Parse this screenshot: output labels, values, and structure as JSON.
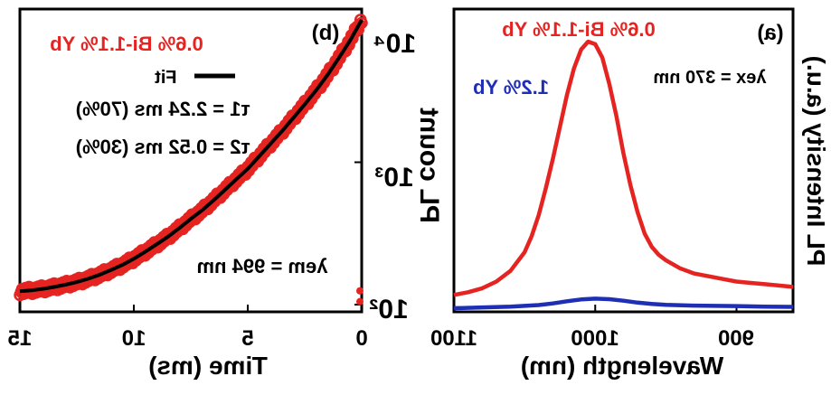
{
  "colors": {
    "red": "#e52421",
    "blue": "#1f2fb5",
    "black": "#000000"
  },
  "chart_data": [
    {
      "panel_label": "(b)",
      "type": "scatter",
      "xlabel": "Time (ms)",
      "ylabel": "",
      "xlim": [
        15,
        0
      ],
      "ylim_log10": [
        2,
        4
      ],
      "yscale": "log",
      "xticks": [
        "15",
        "10",
        "5",
        "0"
      ],
      "yticks": [
        "10²",
        "10³",
        "10⁴"
      ],
      "legend": {
        "sample": "0.6% Bi-1.1% Yb",
        "fit_label": "Fit"
      },
      "annotations": {
        "tau1": "τ1 = 2.24 ms (70%)",
        "tau2": "τ2 = 0.52 ms (30%)",
        "lambda_em": "λem = 994 nm"
      },
      "series": [
        {
          "name": "0.6% Bi-1.1% Yb",
          "style": "markers",
          "x": [
            0,
            0.5,
            1,
            1.5,
            2,
            2.5,
            3,
            3.5,
            4,
            4.5,
            5,
            5.5,
            6,
            6.5,
            7,
            7.5,
            8,
            8.5,
            9,
            9.5,
            10,
            10.5,
            11,
            11.5,
            12,
            12.5,
            13,
            13.5,
            14,
            14.5,
            15
          ],
          "y": [
            10000,
            7200,
            5400,
            4100,
            3200,
            2550,
            2050,
            1650,
            1350,
            1100,
            900,
            760,
            640,
            540,
            460,
            400,
            345,
            300,
            265,
            235,
            210,
            190,
            175,
            162,
            152,
            144,
            138,
            133,
            129,
            126,
            124
          ]
        },
        {
          "name": "Fit",
          "style": "line",
          "x": [
            0,
            0.5,
            1,
            1.5,
            2,
            2.5,
            3,
            3.5,
            4,
            4.5,
            5,
            5.5,
            6,
            6.5,
            7,
            7.5,
            8,
            8.5,
            9,
            9.5,
            10,
            10.5,
            11,
            11.5,
            12,
            12.5,
            13,
            13.5,
            14,
            14.5,
            15
          ],
          "y": [
            10000,
            7200,
            5400,
            4100,
            3200,
            2550,
            2050,
            1650,
            1350,
            1100,
            900,
            760,
            640,
            540,
            460,
            400,
            345,
            300,
            265,
            235,
            210,
            190,
            175,
            162,
            152,
            144,
            138,
            133,
            129,
            126,
            124
          ]
        }
      ]
    },
    {
      "panel_label": "(a)",
      "type": "line",
      "xlabel": "Wavelength (nm)",
      "ylabel": "PL Intensity (a.u.)",
      "ylabel_inner": "PL count",
      "xlim": [
        1100,
        860
      ],
      "ylim": [
        0,
        1.1
      ],
      "xticks": [
        "1100",
        "1000",
        "900"
      ],
      "annotations": {
        "lambda_ex": "λex = 370 nm"
      },
      "series": [
        {
          "name": "0.6% Bi-1.1% Yb",
          "color": "#e52421",
          "x": [
            1100,
            1090,
            1080,
            1070,
            1060,
            1050,
            1045,
            1040,
            1035,
            1030,
            1025,
            1020,
            1015,
            1010,
            1005,
            1000,
            995,
            990,
            985,
            980,
            975,
            970,
            965,
            960,
            955,
            950,
            940,
            930,
            920,
            910,
            900,
            890,
            880,
            870,
            860
          ],
          "y": [
            0.05,
            0.06,
            0.075,
            0.1,
            0.14,
            0.21,
            0.27,
            0.35,
            0.45,
            0.56,
            0.68,
            0.8,
            0.9,
            0.97,
            1.0,
            0.99,
            0.94,
            0.84,
            0.72,
            0.58,
            0.46,
            0.36,
            0.28,
            0.23,
            0.2,
            0.18,
            0.15,
            0.13,
            0.12,
            0.11,
            0.1,
            0.095,
            0.09,
            0.085,
            0.08
          ]
        },
        {
          "name": "1.2% Yb",
          "color": "#1f2fb5",
          "x": [
            1100,
            1080,
            1060,
            1040,
            1030,
            1020,
            1010,
            1000,
            990,
            980,
            970,
            960,
            950,
            930,
            900,
            880,
            860
          ],
          "y": [
            0.0,
            0.003,
            0.006,
            0.012,
            0.018,
            0.026,
            0.033,
            0.036,
            0.034,
            0.028,
            0.021,
            0.016,
            0.013,
            0.01,
            0.008,
            0.006,
            0.005
          ]
        }
      ]
    }
  ]
}
